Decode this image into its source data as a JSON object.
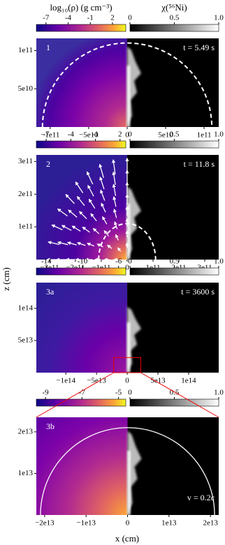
{
  "figure": {
    "x_label": "x (cm)",
    "y_label": "z (cm)"
  },
  "chart_data": [
    {
      "type": "image",
      "panel_label": "1",
      "annotation": "t = 5.49 s",
      "xlim": [
        -118000000000.0,
        119000000000.0
      ],
      "ylim": [
        0,
        116000000000.0
      ],
      "xticks": [
        {
          "value": -100000000000.0,
          "label": "−1e11"
        },
        {
          "value": -50000000000.0,
          "label": "−5e10"
        },
        0,
        {
          "value": 50000000000.0,
          "label": "5e10"
        },
        {
          "value": 100000000000.0,
          "label": "1e11"
        }
      ],
      "yticks": [
        {
          "value": 50000000000.0,
          "label": "5e10"
        },
        {
          "value": 100000000000.0,
          "label": "1e11"
        }
      ],
      "colorbars": [
        {
          "label": "log₁₀(ρ) (g cm⁻³)",
          "colormap": "plasma",
          "clim": [
            -8.3,
            3.8
          ],
          "ticks": [
            -7,
            -4,
            -1,
            2
          ]
        },
        {
          "label": "χ(⁵⁶Ni)",
          "colormap": "gray",
          "clim": [
            0,
            1
          ],
          "ticks": [
            0,
            0.5,
            {
              "value": 1,
              "label": "1.0"
            }
          ]
        }
      ]
    },
    {
      "type": "image",
      "panel_label": "2",
      "annotation": "t = 11.8 s",
      "xlim": [
        -351000000000.0,
        354000000000.0
      ],
      "ylim": [
        0,
        320000000000.0
      ],
      "xticks": [
        {
          "value": -300000000000.0,
          "label": "−3e11"
        },
        {
          "value": -200000000000.0,
          "label": "−2e11"
        },
        {
          "value": -100000000000.0,
          "label": "−1e11"
        },
        0,
        {
          "value": 100000000000.0,
          "label": "1e11"
        },
        {
          "value": 200000000000.0,
          "label": "2e11"
        },
        {
          "value": 300000000000.0,
          "label": "3e11"
        }
      ],
      "yticks": [
        {
          "value": 100000000000.0,
          "label": "1e11"
        },
        {
          "value": 200000000000.0,
          "label": "2e11"
        },
        {
          "value": 300000000000.0,
          "label": "3e11"
        }
      ],
      "colorbars": [
        {
          "colormap": "plasma",
          "clim": [
            -8.2,
            2.7
          ],
          "ticks": [
            -7,
            -4,
            -1,
            2
          ]
        },
        {
          "colormap": "gray",
          "clim": [
            0,
            1
          ],
          "ticks": [
            0,
            0.5,
            {
              "value": 1,
              "label": "1.0"
            }
          ]
        }
      ]
    },
    {
      "type": "image",
      "panel_label": "3a",
      "annotation": "t = 3600 s",
      "xlim": [
        -148000000000000.0,
        149000000000000.0
      ],
      "ylim": [
        0,
        140000000000000.0
      ],
      "xticks": [
        {
          "value": -100000000000000.0,
          "label": "−1e14"
        },
        {
          "value": -50000000000000.0,
          "label": "−5e13"
        },
        0,
        {
          "value": 50000000000000.0,
          "label": "5e13"
        },
        {
          "value": 100000000000000.0,
          "label": "1e14"
        }
      ],
      "yticks": [
        {
          "value": 50000000000000.0,
          "label": "5e13"
        },
        {
          "value": 100000000000000.0,
          "label": "1e14"
        }
      ],
      "colorbars": [
        {
          "colormap": "plasma",
          "clim": [
            -15.1,
            -5.2
          ],
          "ticks": [
            -14,
            -10,
            -6
          ]
        },
        {
          "colormap": "gray",
          "clim": [
            0,
            1
          ],
          "ticks": [
            0,
            0.5,
            {
              "value": 1,
              "label": "1.0"
            }
          ]
        }
      ]
    },
    {
      "type": "image",
      "panel_label": "3b",
      "annotation": "v = 0.2c",
      "xlim": [
        -22000000000000.0,
        22000000000000.0
      ],
      "ylim": [
        0,
        23500000000000.0
      ],
      "xticks": [
        {
          "value": -20000000000000.0,
          "label": "−2e13"
        },
        {
          "value": -10000000000000.0,
          "label": "−1e13"
        },
        0,
        {
          "value": 10000000000000.0,
          "label": "1e13"
        },
        {
          "value": 20000000000000.0,
          "label": "2e13"
        }
      ],
      "yticks": [
        {
          "value": 10000000000000.0,
          "label": "1e13"
        },
        {
          "value": 20000000000000.0,
          "label": "2e13"
        }
      ],
      "colorbars": [
        {
          "colormap": "plasma",
          "clim": [
            -9.5,
            -4.6
          ],
          "ticks": [
            -9,
            -7,
            -5
          ]
        },
        {
          "colormap": "gray",
          "clim": [
            0,
            1
          ],
          "ticks": [
            0,
            0.5,
            {
              "value": 1,
              "label": "1.0"
            }
          ]
        }
      ]
    }
  ]
}
